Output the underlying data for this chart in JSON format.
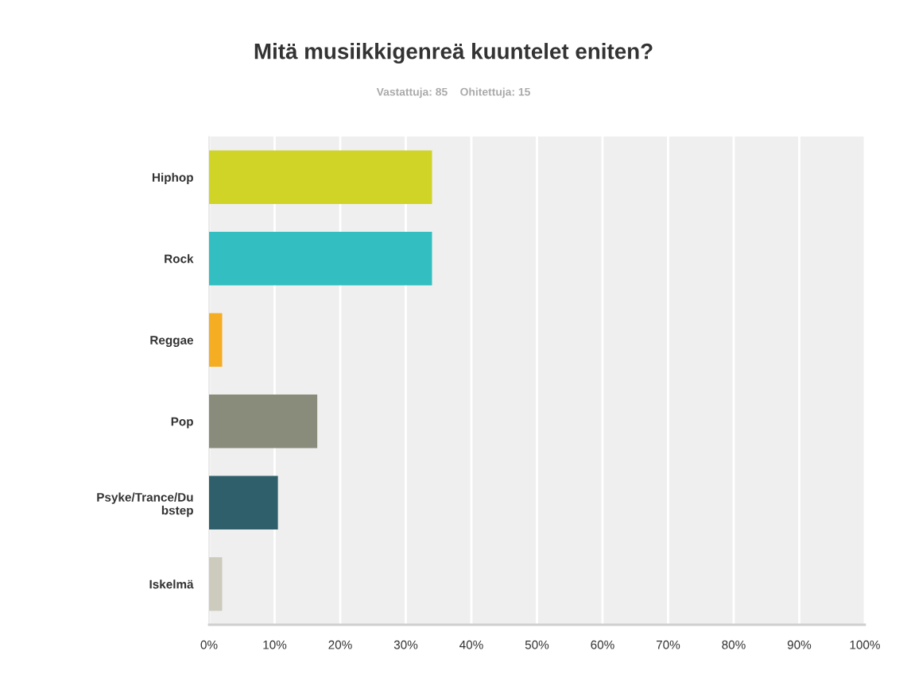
{
  "chart_data": {
    "type": "bar",
    "orientation": "horizontal",
    "title": "Mitä musiikkigenreä kuuntelet eniten?",
    "subtitle": "Vastattuja: 85    Ohitettuja: 15",
    "categories": [
      "Hiphop",
      "Rock",
      "Reggae",
      "Pop",
      "Psyke/Trance/Du\nbstep",
      "Iskelmä"
    ],
    "values": [
      34,
      34,
      2,
      16.5,
      10.5,
      2
    ],
    "colors": [
      "#cfd427",
      "#33bfc1",
      "#f5ad23",
      "#898b7b",
      "#2e5f6b",
      "#cccbbd"
    ],
    "xlim": [
      0,
      100
    ],
    "xticks": [
      {
        "value": 0,
        "label": "0%"
      },
      {
        "value": 10,
        "label": "10%"
      },
      {
        "value": 20,
        "label": "20%"
      },
      {
        "value": 30,
        "label": "30%"
      },
      {
        "value": 40,
        "label": "40%"
      },
      {
        "value": 50,
        "label": "50%"
      },
      {
        "value": 60,
        "label": "60%"
      },
      {
        "value": 70,
        "label": "70%"
      },
      {
        "value": 80,
        "label": "80%"
      },
      {
        "value": 90,
        "label": "90%"
      },
      {
        "value": 100,
        "label": "100%"
      }
    ],
    "grid": "x"
  }
}
